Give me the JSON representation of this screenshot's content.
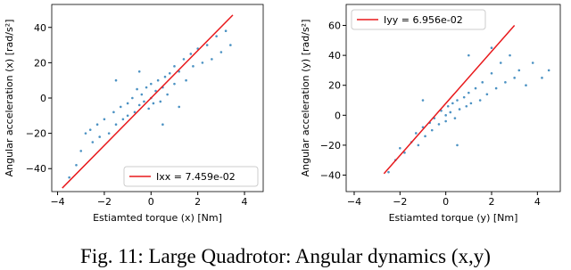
{
  "chart_data": [
    {
      "type": "scatter",
      "xlabel": "Estiamted torque (x) [Nm]",
      "ylabel": "Angular acceleration (x) [rad/s²]",
      "xlim": [
        -4.25,
        4.8
      ],
      "ylim": [
        -53,
        53
      ],
      "xticks": [
        {
          "value": -4,
          "label": "−4"
        },
        {
          "value": -2,
          "label": "−2"
        },
        0,
        2,
        4
      ],
      "yticks": [
        {
          "value": -40,
          "label": "−40"
        },
        {
          "value": -20,
          "label": "−20"
        },
        0,
        20,
        40
      ],
      "legend": "lower right",
      "series": [
        {
          "color": "#1f77b4",
          "x": [
            -3.5,
            -3.2,
            -3,
            -2.8,
            -2.6,
            -2.5,
            -2.3,
            -2.2,
            -2,
            -1.8,
            -1.6,
            -1.5,
            -1.3,
            -1.2,
            -1,
            -1,
            -0.8,
            -0.7,
            -0.6,
            -0.5,
            -0.4,
            -0.3,
            -0.2,
            -0.1,
            0,
            0,
            0.1,
            0.2,
            0.3,
            0.4,
            0.5,
            0.6,
            0.7,
            0.8,
            1,
            1,
            1.2,
            1.4,
            1.5,
            1.7,
            1.8,
            2,
            2.2,
            2.4,
            2.6,
            2.8,
            3,
            3.2,
            3.4,
            1.2,
            -1.5,
            0.5,
            -0.5
          ],
          "values": [
            -45,
            -38,
            -30,
            -20,
            -18,
            -25,
            -15,
            -22,
            -12,
            -20,
            -8,
            -15,
            -5,
            -12,
            -3,
            -10,
            0,
            -8,
            5,
            -4,
            2,
            -2,
            6,
            -6,
            0,
            8,
            -3,
            4,
            10,
            -2,
            6,
            12,
            2,
            14,
            8,
            18,
            15,
            22,
            10,
            25,
            18,
            28,
            20,
            30,
            22,
            35,
            26,
            38,
            30,
            -5,
            10,
            -15,
            15
          ]
        },
        {
          "name": "Ixx = 7.459e-02",
          "color": "#e8191c",
          "line": true,
          "x": [
            -3.8,
            3.5
          ],
          "values": [
            -51,
            47
          ]
        }
      ]
    },
    {
      "type": "scatter",
      "xlabel": "Estiamted torque (y) [Nm]",
      "ylabel": "Angular acceleration (y) [rad/s²]",
      "xlim": [
        -4.35,
        5
      ],
      "ylim": [
        -51,
        74
      ],
      "xticks": [
        {
          "value": -4,
          "label": "−4"
        },
        {
          "value": -2,
          "label": "−2"
        },
        0,
        2,
        4
      ],
      "yticks": [
        {
          "value": -40,
          "label": "−40"
        },
        {
          "value": -20,
          "label": "−20"
        },
        0,
        20,
        40,
        60
      ],
      "legend": "upper left",
      "series": [
        {
          "color": "#1f77b4",
          "x": [
            -2.5,
            -2.2,
            -2,
            -1.8,
            -1.5,
            -1.3,
            -1.2,
            -1,
            -0.9,
            -0.7,
            -0.6,
            -0.5,
            -0.3,
            -0.2,
            0,
            0,
            0.1,
            0.2,
            0.3,
            0.4,
            0.5,
            0.6,
            0.8,
            0.9,
            1,
            1.1,
            1.3,
            1.5,
            1.6,
            1.8,
            2,
            2.2,
            2.4,
            2.6,
            2.8,
            3,
            3.2,
            3.5,
            3.8,
            4.2,
            4.5,
            1,
            2,
            -1,
            0.5
          ],
          "values": [
            -38,
            -30,
            -22,
            -25,
            -18,
            -12,
            -20,
            -8,
            -14,
            -5,
            -10,
            -2,
            -6,
            3,
            0,
            -4,
            6,
            2,
            8,
            -2,
            10,
            4,
            12,
            6,
            15,
            8,
            18,
            10,
            22,
            14,
            28,
            18,
            35,
            22,
            40,
            25,
            30,
            20,
            35,
            25,
            30,
            40,
            45,
            10,
            -20
          ]
        },
        {
          "name": "Iyy = 6.956e-02",
          "color": "#e8191c",
          "line": true,
          "x": [
            -2.7,
            3.0
          ],
          "values": [
            -39,
            60
          ]
        }
      ]
    }
  ],
  "caption": "Fig. 11: Large Quadrotor: Angular dynamics (x,y)"
}
